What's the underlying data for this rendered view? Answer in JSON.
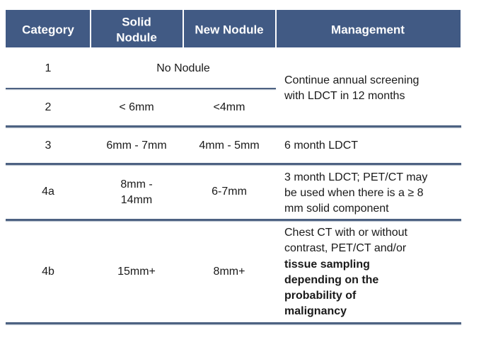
{
  "table": {
    "header": {
      "category": "Category",
      "solid_nodule": [
        "Solid",
        "Nodule"
      ],
      "new_nodule": "New Nodule",
      "management": "Management"
    },
    "rows": [
      {
        "category": "1",
        "nodule": "No Nodule",
        "management": [
          "Continue annual screening",
          "with LDCT in 12 months"
        ]
      },
      {
        "category": "2",
        "solid_nodule": "< 6mm",
        "new_nodule": "<4mm"
      },
      {
        "category": "3",
        "solid_nodule": "6mm - 7mm",
        "new_nodule": "4mm - 5mm",
        "management": [
          "6 month LDCT"
        ]
      },
      {
        "category": "4a",
        "solid_nodule": [
          "8mm -",
          "14mm"
        ],
        "new_nodule": "6-7mm",
        "management": [
          "3 month LDCT; PET/CT may",
          "be used when there is a ≥ 8",
          "mm solid component"
        ]
      },
      {
        "category": "4b",
        "solid_nodule": "15mm+",
        "new_nodule": "8mm+",
        "management": [
          "Chest CT with or without",
          "contrast, PET/CT and/or"
        ],
        "management_bold": [
          "tissue sampling",
          "depending on the",
          "probability of",
          "malignancy"
        ]
      }
    ]
  }
}
